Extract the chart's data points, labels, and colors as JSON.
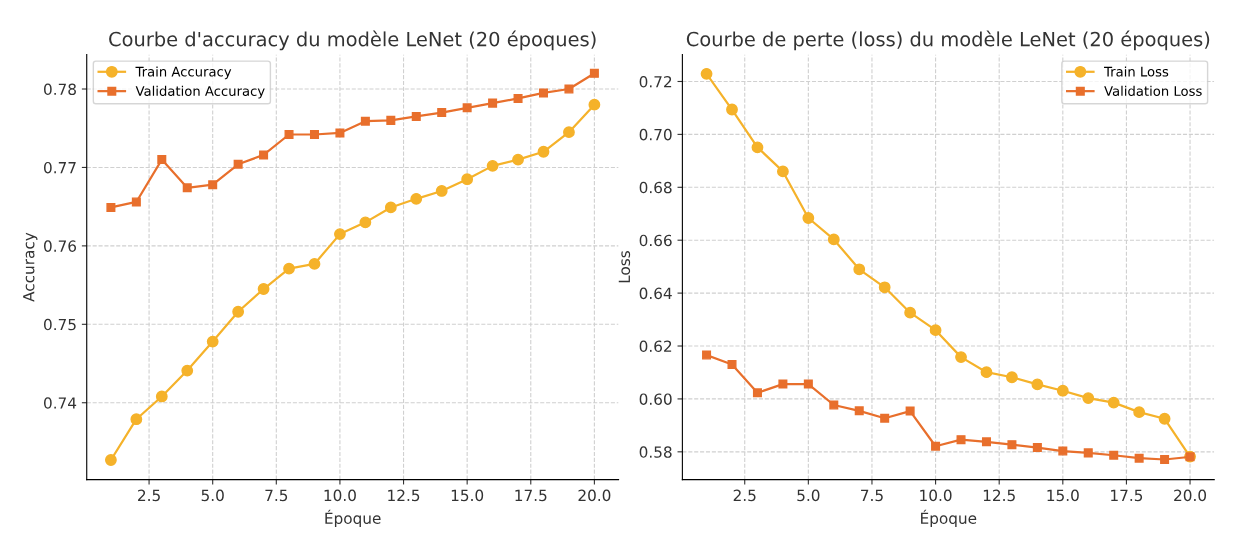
{
  "chart_data": [
    {
      "type": "line",
      "title": "Courbe d'accuracy du modèle LeNet (20 époques)",
      "xlabel": "Époque",
      "ylabel": "Accuracy",
      "x": [
        1,
        2,
        3,
        4,
        5,
        6,
        7,
        8,
        9,
        10,
        11,
        12,
        13,
        14,
        15,
        16,
        17,
        18,
        19,
        20
      ],
      "series": [
        {
          "name": "Train Accuracy",
          "color": "#f5b22a",
          "marker": "circle",
          "values": [
            0.7327,
            0.7379,
            0.7408,
            0.7441,
            0.7478,
            0.7516,
            0.7545,
            0.7571,
            0.7577,
            0.7615,
            0.763,
            0.7649,
            0.766,
            0.767,
            0.7685,
            0.7702,
            0.771,
            0.772,
            0.7745,
            0.778
          ]
        },
        {
          "name": "Validation Accuracy",
          "color": "#e86f2c",
          "marker": "square",
          "values": [
            0.7649,
            0.7656,
            0.771,
            0.7674,
            0.7678,
            0.7704,
            0.7716,
            0.7742,
            0.7742,
            0.7744,
            0.7759,
            0.776,
            0.7765,
            0.777,
            0.7776,
            0.7782,
            0.7788,
            0.7795,
            0.78,
            0.782
          ]
        }
      ],
      "xlim": [
        0.05,
        20.95
      ],
      "xticks": [
        {
          "value": 2.5,
          "label": "2.5"
        },
        {
          "value": 5,
          "label": "5.0"
        },
        {
          "value": 7.5,
          "label": "7.5"
        },
        {
          "value": 10,
          "label": "10.0"
        },
        {
          "value": 12.5,
          "label": "12.5"
        },
        {
          "value": 15,
          "label": "15.0"
        },
        {
          "value": 17.5,
          "label": "17.5"
        },
        {
          "value": 20,
          "label": "20.0"
        }
      ],
      "ylim": [
        0.7302,
        0.7844
      ],
      "yticks": [
        {
          "value": 0.74,
          "label": "0.74"
        },
        {
          "value": 0.75,
          "label": "0.75"
        },
        {
          "value": 0.76,
          "label": "0.76"
        },
        {
          "value": 0.77,
          "label": "0.77"
        },
        {
          "value": 0.78,
          "label": "0.78"
        }
      ],
      "grid": true,
      "legend": "top left",
      "line_style": "solid"
    },
    {
      "type": "line",
      "title": "Courbe de perte (loss) du modèle LeNet (20 époques)",
      "xlabel": "Époque",
      "ylabel": "Loss",
      "x": [
        1,
        2,
        3,
        4,
        5,
        6,
        7,
        8,
        9,
        10,
        11,
        12,
        13,
        14,
        15,
        16,
        17,
        18,
        19,
        20
      ],
      "series": [
        {
          "name": "Train Loss",
          "color": "#f5b22a",
          "marker": "circle",
          "values": [
            0.7229,
            0.7094,
            0.6951,
            0.686,
            0.6684,
            0.6603,
            0.649,
            0.6422,
            0.6326,
            0.626,
            0.6158,
            0.6101,
            0.6082,
            0.6055,
            0.6031,
            0.6003,
            0.5986,
            0.595,
            0.5925,
            0.5782
          ]
        },
        {
          "name": "Validation Loss",
          "color": "#e86f2c",
          "marker": "square",
          "values": [
            0.6166,
            0.613,
            0.6023,
            0.6056,
            0.6056,
            0.5977,
            0.5955,
            0.5927,
            0.5954,
            0.5821,
            0.5846,
            0.5838,
            0.5827,
            0.5816,
            0.5803,
            0.5796,
            0.5787,
            0.5776,
            0.5771,
            0.5781
          ]
        }
      ],
      "xlim": [
        0.05,
        20.95
      ],
      "xticks": [
        {
          "value": 2.5,
          "label": "2.5"
        },
        {
          "value": 5,
          "label": "5.0"
        },
        {
          "value": 7.5,
          "label": "7.5"
        },
        {
          "value": 10,
          "label": "10.0"
        },
        {
          "value": 12.5,
          "label": "12.5"
        },
        {
          "value": 15,
          "label": "15.0"
        },
        {
          "value": 17.5,
          "label": "17.5"
        },
        {
          "value": 20,
          "label": "20.0"
        }
      ],
      "ylim": [
        0.5695,
        0.7302
      ],
      "yticks": [
        {
          "value": 0.58,
          "label": "0.58"
        },
        {
          "value": 0.6,
          "label": "0.60"
        },
        {
          "value": 0.62,
          "label": "0.62"
        },
        {
          "value": 0.64,
          "label": "0.64"
        },
        {
          "value": 0.66,
          "label": "0.66"
        },
        {
          "value": 0.68,
          "label": "0.68"
        },
        {
          "value": 0.7,
          "label": "0.70"
        },
        {
          "value": 0.72,
          "label": "0.72"
        }
      ],
      "grid": true,
      "legend": "top right",
      "line_style": "solid"
    }
  ]
}
